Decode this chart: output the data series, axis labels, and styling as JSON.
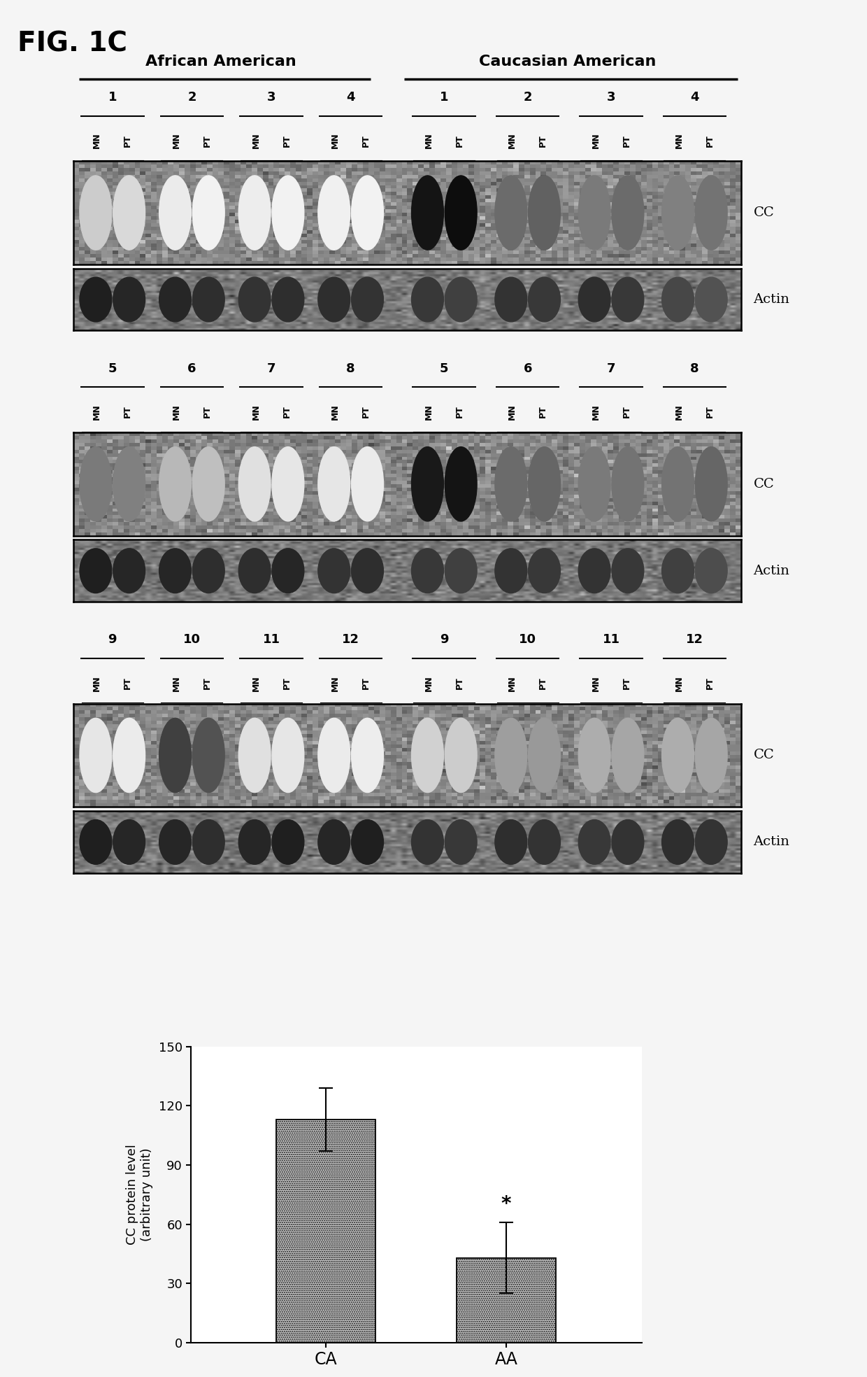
{
  "fig_label": "FIG. 1C",
  "group_labels": [
    "African American",
    "Caucasian American"
  ],
  "sample_nums_row1_aa": [
    "1",
    "2",
    "3",
    "4"
  ],
  "sample_nums_row1_ca": [
    "1",
    "2",
    "3",
    "4"
  ],
  "sample_nums_row2_aa": [
    "5",
    "6",
    "7",
    "8"
  ],
  "sample_nums_row2_ca": [
    "5",
    "6",
    "7",
    "8"
  ],
  "sample_nums_row3_aa": [
    "9",
    "10",
    "11",
    "12"
  ],
  "sample_nums_row3_ca": [
    "9",
    "10",
    "11",
    "12"
  ],
  "bar_categories": [
    "CA",
    "AA"
  ],
  "bar_values": [
    113.0,
    43.0
  ],
  "bar_errors_upper": [
    16.0,
    18.0
  ],
  "bar_errors_lower": [
    16.0,
    18.0
  ],
  "bar_color": "#c8c8c8",
  "ylabel_line1": "CC protein level",
  "ylabel_line2": "(arbitrary unit)",
  "ylim": [
    0,
    150
  ],
  "yticks": [
    0,
    30,
    60,
    90,
    120,
    150
  ],
  "significance_label": "*",
  "bg_color": "#f5f5f5",
  "blot_bg_mean": 0.62,
  "blot_bg_std": 0.06
}
